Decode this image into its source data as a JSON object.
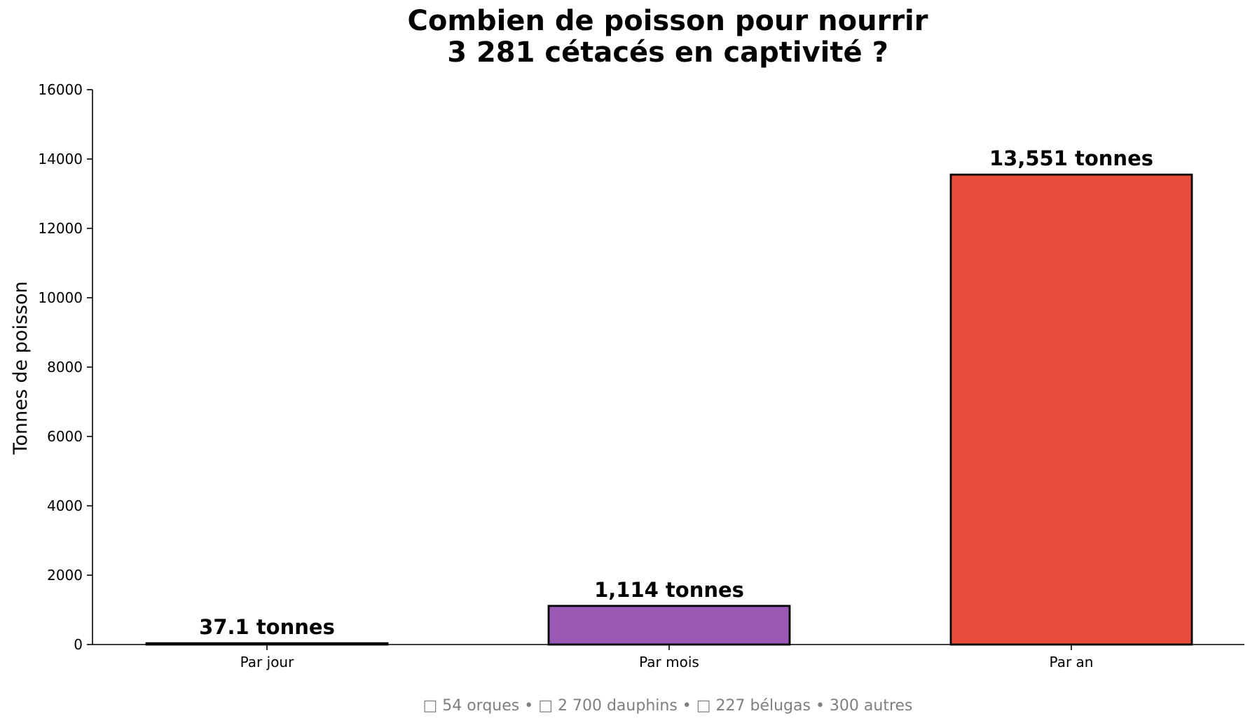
{
  "chart_data": {
    "type": "bar",
    "title": [
      "Combien de poisson pour nourrir",
      "3 281 cétacés en captivité ?"
    ],
    "xlabel": "",
    "ylabel": "Tonnes de poisson",
    "categories": [
      "Par jour",
      "Par mois",
      "Par an"
    ],
    "values": [
      37.1,
      1114,
      13551
    ],
    "data_labels": [
      "37.1 tonnes",
      "1,114 tonnes",
      "13,551 tonnes"
    ],
    "colors": [
      "#2e86de",
      "#9b59b6",
      "#e74c3c"
    ],
    "edge_color": "#000000",
    "ylim": [
      0,
      16000
    ],
    "yticks": [
      0,
      2000,
      4000,
      6000,
      8000,
      10000,
      12000,
      14000,
      16000
    ],
    "grid": false,
    "legend": "none",
    "footer": "□ 54 orques  •  □ 2 700 dauphins  •  □ 227 bélugas  •  300 autres"
  }
}
